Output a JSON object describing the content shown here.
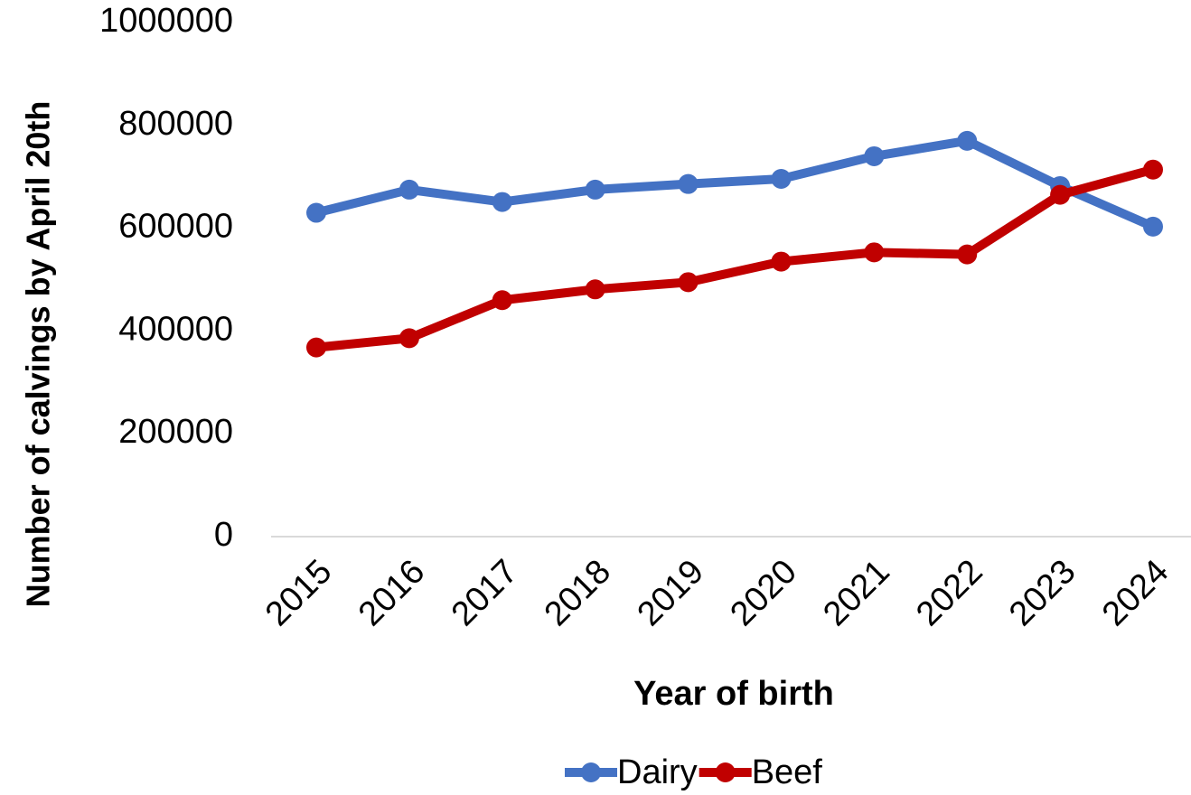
{
  "chart_data": {
    "type": "line",
    "x_label": "Year of birth",
    "y_label": "Number of calvings by April 20th",
    "categories": [
      "2015",
      "2016",
      "2017",
      "2018",
      "2019",
      "2020",
      "2021",
      "2022",
      "2023",
      "2024"
    ],
    "series": [
      {
        "name": "Dairy",
        "color": "#4472c4",
        "values": [
          630000,
          675000,
          651000,
          675000,
          686000,
          696000,
          740000,
          770000,
          682000,
          603000
        ]
      },
      {
        "name": "Beef",
        "color": "#c00000",
        "values": [
          368000,
          386000,
          460000,
          481000,
          495000,
          535000,
          553000,
          549000,
          665000,
          714000
        ]
      }
    ],
    "ylim": [
      0,
      1000000
    ],
    "yticks": [
      0,
      200000,
      400000,
      600000,
      800000,
      1000000
    ],
    "grid": false,
    "legend": "bottom"
  }
}
